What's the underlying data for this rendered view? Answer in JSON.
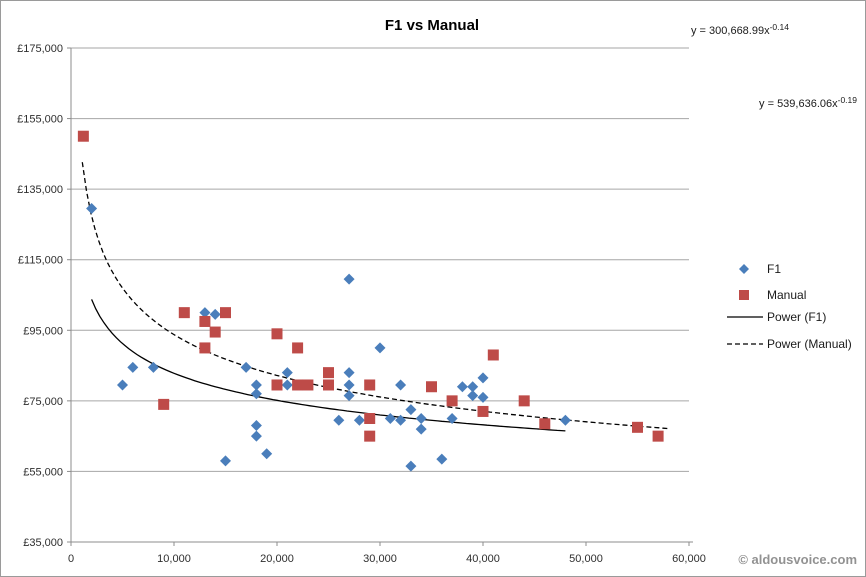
{
  "title": "F1 vs Manual",
  "watermark": "© aldousvoice.com",
  "equations": [
    {
      "name": "power-f1-equation",
      "base": "y = 300,668.99x",
      "exp": "-0.14"
    },
    {
      "name": "power-manual-equation",
      "base": "y = 539,636.06x",
      "exp": "-0.19"
    }
  ],
  "legend": [
    {
      "label": "F1",
      "marker": "diamond",
      "color": "#4a7ebb"
    },
    {
      "label": "Manual",
      "marker": "square",
      "color": "#be4b48"
    },
    {
      "label": "Power (F1)",
      "marker": "solid-line",
      "color": "#000000"
    },
    {
      "label": "Power (Manual)",
      "marker": "dashed-line",
      "color": "#000000"
    }
  ],
  "colors": {
    "f1": "#4a7ebb",
    "manual": "#be4b48",
    "trendline": "#000000",
    "gridline": "#a6a6a6"
  },
  "chart_data": {
    "type": "scatter",
    "title": "F1 vs Manual",
    "xlabel": "",
    "ylabel": "",
    "xlim": [
      0,
      60000
    ],
    "ylim": [
      35000,
      175000
    ],
    "x_tick_step": 10000,
    "y_tick_step": 20000,
    "y_tick_prefix": "£",
    "grid": "horizontal",
    "legend_position": "right",
    "series": [
      {
        "name": "F1",
        "marker": "diamond",
        "color": "#4a7ebb",
        "points": [
          [
            2000,
            129500
          ],
          [
            5000,
            79500
          ],
          [
            6000,
            84500
          ],
          [
            8000,
            84500
          ],
          [
            13000,
            100000
          ],
          [
            14000,
            99500
          ],
          [
            15000,
            58000
          ],
          [
            17000,
            84500
          ],
          [
            18000,
            79500
          ],
          [
            18000,
            77000
          ],
          [
            18000,
            68000
          ],
          [
            18000,
            65000
          ],
          [
            19000,
            60000
          ],
          [
            21000,
            83000
          ],
          [
            21000,
            79500
          ],
          [
            26000,
            69500
          ],
          [
            27000,
            109500
          ],
          [
            27000,
            83000
          ],
          [
            27000,
            79500
          ],
          [
            27000,
            76500
          ],
          [
            28000,
            69500
          ],
          [
            30000,
            90000
          ],
          [
            31000,
            70000
          ],
          [
            32000,
            79500
          ],
          [
            32000,
            69500
          ],
          [
            33000,
            72500
          ],
          [
            33000,
            56500
          ],
          [
            34000,
            70000
          ],
          [
            34000,
            67000
          ],
          [
            36000,
            58500
          ],
          [
            37000,
            70000
          ],
          [
            38000,
            79000
          ],
          [
            39000,
            79000
          ],
          [
            39000,
            76500
          ],
          [
            40000,
            81500
          ],
          [
            40000,
            76000
          ],
          [
            48000,
            69500
          ]
        ]
      },
      {
        "name": "Manual",
        "marker": "square",
        "color": "#be4b48",
        "points": [
          [
            1200,
            150000
          ],
          [
            9000,
            74000
          ],
          [
            11000,
            100000
          ],
          [
            13000,
            97500
          ],
          [
            13000,
            90000
          ],
          [
            14000,
            94500
          ],
          [
            15000,
            100000
          ],
          [
            20000,
            94000
          ],
          [
            20000,
            79500
          ],
          [
            22000,
            90000
          ],
          [
            22000,
            79500
          ],
          [
            23000,
            79500
          ],
          [
            25000,
            83000
          ],
          [
            25000,
            79500
          ],
          [
            29000,
            79500
          ],
          [
            29000,
            70000
          ],
          [
            29000,
            65000
          ],
          [
            35000,
            79000
          ],
          [
            37000,
            75000
          ],
          [
            40000,
            72000
          ],
          [
            41000,
            88000
          ],
          [
            44000,
            75000
          ],
          [
            46000,
            68500
          ],
          [
            55000,
            67500
          ],
          [
            57000,
            65000
          ]
        ]
      }
    ],
    "trendlines": [
      {
        "name": "Power (F1)",
        "type": "power",
        "a": 300668.99,
        "b": -0.14,
        "x_range": [
          2000,
          48000
        ],
        "style": "solid",
        "equation": "y = 300,668.99x^-0.14"
      },
      {
        "name": "Power (Manual)",
        "type": "power",
        "a": 539636.06,
        "b": -0.19,
        "x_range": [
          1100,
          58000
        ],
        "style": "dashed",
        "equation": "y = 539,636.06x^-0.19"
      }
    ]
  }
}
